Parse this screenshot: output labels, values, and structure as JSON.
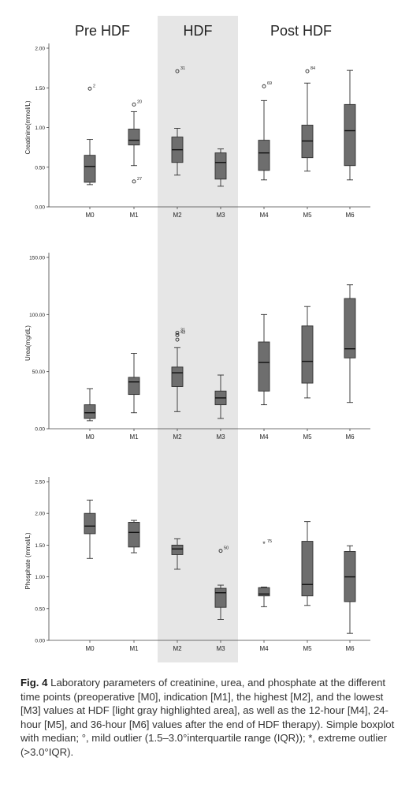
{
  "colors": {
    "highlight": "#e6e6e6",
    "box_fill": "#6e6e6e",
    "box_stroke": "#2f2f2f",
    "axis": "#444444",
    "text": "#222222"
  },
  "group_labels": [
    "Pre HDF",
    "HDF",
    "Post HDF"
  ],
  "caption": {
    "label": "Fig. 4",
    "text": "Laboratory parameters of creatinine, urea, and phosphate at the different time points (preoperative [M0], indication [M1], the highest [M2], and the lowest [M3] values at HDF [light gray highlighted area], as well as the 12-hour [M4], 24-hour [M5], and 36-hour [M6] values after the end of HDF therapy). Simple boxplot with median; °, mild outlier (1.5–3.0°interquartile range (IQR)); *, extreme outlier (>3.0°IQR)."
  },
  "chart_data": [
    {
      "type": "box",
      "ylabel": "Creatinine(mmol/L)",
      "ylim": [
        0,
        2.0
      ],
      "yticks": [
        0,
        0.5,
        1.0,
        1.5,
        2.0
      ],
      "ytick_labels": [
        "0.00",
        "0.50",
        "1.00",
        "1.50",
        "2.00"
      ],
      "categories": [
        "M0",
        "M1",
        "M2",
        "M3",
        "M4",
        "M5",
        "M6"
      ],
      "highlight_categories": [
        "M2",
        "M3"
      ],
      "boxes": [
        {
          "min": 0.28,
          "q1": 0.31,
          "median": 0.51,
          "q3": 0.65,
          "max": 0.85
        },
        {
          "min": 0.52,
          "q1": 0.78,
          "median": 0.84,
          "q3": 0.98,
          "max": 1.2
        },
        {
          "min": 0.4,
          "q1": 0.56,
          "median": 0.72,
          "q3": 0.88,
          "max": 0.99
        },
        {
          "min": 0.26,
          "q1": 0.35,
          "median": 0.56,
          "q3": 0.68,
          "max": 0.73
        },
        {
          "min": 0.34,
          "q1": 0.46,
          "median": 0.68,
          "q3": 0.84,
          "max": 1.34
        },
        {
          "min": 0.45,
          "q1": 0.62,
          "median": 0.83,
          "q3": 1.03,
          "max": 1.56
        },
        {
          "min": 0.34,
          "q1": 0.52,
          "median": 0.96,
          "q3": 1.29,
          "max": 1.72
        }
      ],
      "outliers": [
        {
          "category": "M0",
          "value": 1.49,
          "label": "2",
          "kind": "mild"
        },
        {
          "category": "M1",
          "value": 1.29,
          "label": "20",
          "kind": "mild"
        },
        {
          "category": "M1",
          "value": 0.32,
          "label": "27",
          "kind": "mild"
        },
        {
          "category": "M2",
          "value": 1.71,
          "label": "31",
          "kind": "mild"
        },
        {
          "category": "M4",
          "value": 1.52,
          "label": "69",
          "kind": "mild"
        },
        {
          "category": "M5",
          "value": 1.71,
          "label": "84",
          "kind": "mild"
        }
      ]
    },
    {
      "type": "box",
      "ylabel": "Urea(mg/dL)",
      "ylim": [
        0,
        150
      ],
      "yticks": [
        0,
        50,
        100,
        150
      ],
      "ytick_labels": [
        "0.00",
        "50.00",
        "100.00",
        "150.00"
      ],
      "categories": [
        "M0",
        "M1",
        "M2",
        "M3",
        "M4",
        "M5",
        "M6"
      ],
      "highlight_categories": [
        "M2",
        "M3"
      ],
      "boxes": [
        {
          "min": 7,
          "q1": 9,
          "median": 14,
          "q3": 21,
          "max": 35
        },
        {
          "min": 14,
          "q1": 30,
          "median": 41,
          "q3": 45,
          "max": 66
        },
        {
          "min": 15,
          "q1": 37,
          "median": 49,
          "q3": 54,
          "max": 71
        },
        {
          "min": 9,
          "q1": 21,
          "median": 27,
          "q3": 33,
          "max": 47
        },
        {
          "min": 21,
          "q1": 33,
          "median": 58,
          "q3": 76,
          "max": 100
        },
        {
          "min": 27,
          "q1": 40,
          "median": 59,
          "q3": 90,
          "max": 107
        },
        {
          "min": 23,
          "q1": 62,
          "median": 70,
          "q3": 114,
          "max": 126
        }
      ],
      "outliers": [
        {
          "category": "M2",
          "value": 84,
          "label": "31",
          "kind": "mild"
        },
        {
          "category": "M2",
          "value": 82,
          "label": "43",
          "kind": "mild"
        },
        {
          "category": "M2",
          "value": 78,
          "label": "",
          "kind": "mild"
        }
      ]
    },
    {
      "type": "box",
      "ylabel": "Phosphate (mmol/L)",
      "ylim": [
        0,
        2.5
      ],
      "yticks": [
        0,
        0.5,
        1.0,
        1.5,
        2.0,
        2.5
      ],
      "ytick_labels": [
        "0.00",
        "0.50",
        "1.00",
        "1.50",
        "2.00",
        "2.50"
      ],
      "categories": [
        "M0",
        "M1",
        "M2",
        "M3",
        "M4",
        "M5",
        "M6"
      ],
      "highlight_categories": [
        "M2",
        "M3"
      ],
      "boxes": [
        {
          "min": 1.29,
          "q1": 1.68,
          "median": 1.8,
          "q3": 2.0,
          "max": 2.21
        },
        {
          "min": 1.38,
          "q1": 1.47,
          "median": 1.7,
          "q3": 1.86,
          "max": 1.89
        },
        {
          "min": 1.12,
          "q1": 1.35,
          "median": 1.44,
          "q3": 1.5,
          "max": 1.6
        },
        {
          "min": 0.33,
          "q1": 0.52,
          "median": 0.75,
          "q3": 0.82,
          "max": 0.87
        },
        {
          "min": 0.53,
          "q1": 0.7,
          "median": 0.73,
          "q3": 0.83,
          "max": 0.84
        },
        {
          "min": 0.55,
          "q1": 0.7,
          "median": 0.88,
          "q3": 1.56,
          "max": 1.87
        },
        {
          "min": 0.11,
          "q1": 0.61,
          "median": 1.0,
          "q3": 1.4,
          "max": 1.49
        }
      ],
      "outliers": [
        {
          "category": "M3",
          "value": 1.41,
          "label": "50",
          "kind": "mild"
        },
        {
          "category": "M4",
          "value": 1.52,
          "label": "75",
          "kind": "extreme"
        }
      ]
    }
  ]
}
